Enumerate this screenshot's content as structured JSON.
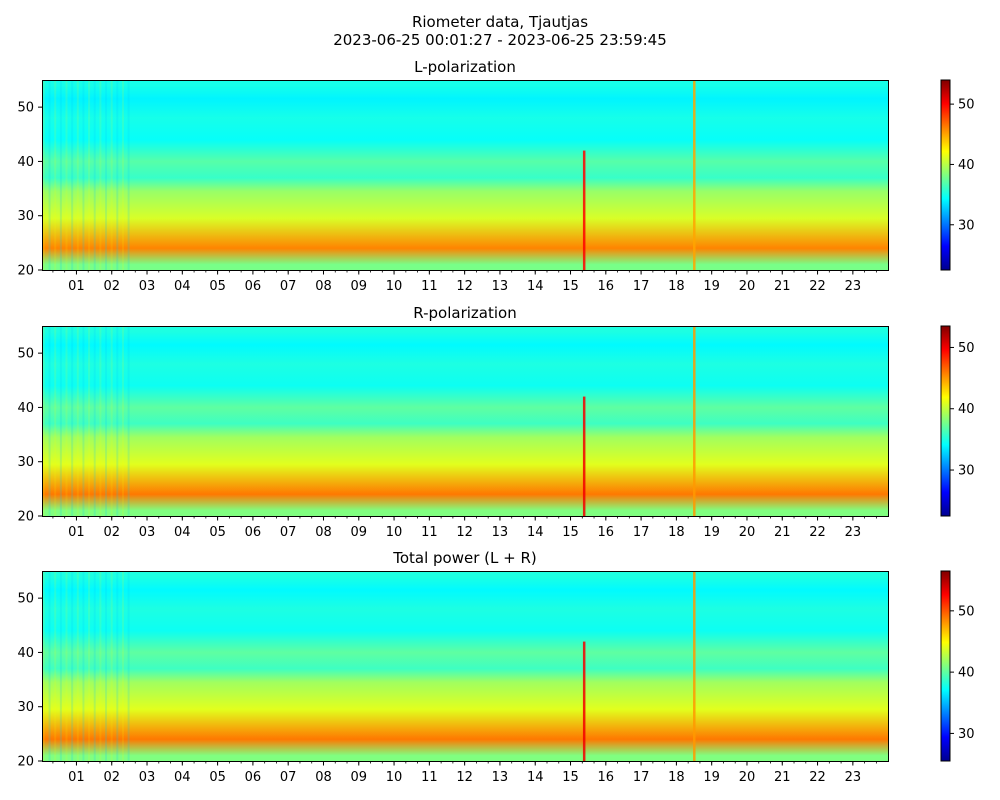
{
  "figure": {
    "title_line1": "Riometer data, Tjautjas",
    "title_line2": "2023-06-25 00:01:27 - 2023-06-25 23:59:45"
  },
  "colors": {
    "colormap": "jet",
    "stops": [
      "#00008f",
      "#0000ff",
      "#0080ff",
      "#00ffff",
      "#80ff80",
      "#ffff00",
      "#ff8000",
      "#ff0000",
      "#800000"
    ]
  },
  "chart_data": [
    {
      "type": "heatmap",
      "title": "L-polarization",
      "xlabel": "",
      "ylabel": "",
      "x_range_hours": [
        0.024,
        23.996
      ],
      "x_tick_labels": [
        "01",
        "02",
        "03",
        "04",
        "05",
        "06",
        "07",
        "08",
        "09",
        "10",
        "11",
        "12",
        "13",
        "14",
        "15",
        "16",
        "17",
        "18",
        "19",
        "20",
        "21",
        "22",
        "23"
      ],
      "y_range": [
        20,
        55
      ],
      "y_ticks": [
        20,
        30,
        40,
        50
      ],
      "colorbar": {
        "range": [
          22.5,
          54
        ],
        "ticks": [
          30,
          40,
          50
        ]
      },
      "value_profile": {
        "20-22": 38,
        "22-26": 46,
        "26-33": 41,
        "33-36": 39,
        "36-38": 36,
        "38-42": 37,
        "42-46": 34.5,
        "46-50": 35,
        "50-53": 34,
        "53-55": 35
      },
      "features": [
        {
          "hour": 15.38,
          "y_span": [
            20,
            42
          ],
          "value": 50,
          "label": "vertical spike"
        },
        {
          "hour": 18.5,
          "y_span": [
            20,
            55
          ],
          "value": 45,
          "label": "vertical line"
        }
      ]
    },
    {
      "type": "heatmap",
      "title": "R-polarization",
      "xlabel": "",
      "ylabel": "",
      "x_range_hours": [
        0.024,
        23.996
      ],
      "x_tick_labels": [
        "01",
        "02",
        "03",
        "04",
        "05",
        "06",
        "07",
        "08",
        "09",
        "10",
        "11",
        "12",
        "13",
        "14",
        "15",
        "16",
        "17",
        "18",
        "19",
        "20",
        "21",
        "22",
        "23"
      ],
      "y_range": [
        20,
        55
      ],
      "y_ticks": [
        20,
        30,
        40,
        50
      ],
      "colorbar": {
        "range": [
          22.5,
          53.5
        ],
        "ticks": [
          30,
          40,
          50
        ]
      },
      "value_profile": {
        "20-22": 38,
        "22-26": 46,
        "26-33": 41,
        "33-36": 39,
        "36-38": 36,
        "38-42": 37,
        "42-46": 34.5,
        "46-50": 35,
        "50-53": 34,
        "53-55": 35
      },
      "features": [
        {
          "hour": 15.38,
          "y_span": [
            20,
            42
          ],
          "value": 50,
          "label": "vertical spike"
        },
        {
          "hour": 18.5,
          "y_span": [
            20,
            55
          ],
          "value": 45,
          "label": "vertical line"
        }
      ]
    },
    {
      "type": "heatmap",
      "title": "Total power (L + R)",
      "xlabel": "",
      "ylabel": "",
      "x_range_hours": [
        0.024,
        23.996
      ],
      "x_tick_labels": [
        "01",
        "02",
        "03",
        "04",
        "05",
        "06",
        "07",
        "08",
        "09",
        "10",
        "11",
        "12",
        "13",
        "14",
        "15",
        "16",
        "17",
        "18",
        "19",
        "20",
        "21",
        "22",
        "23"
      ],
      "y_range": [
        20,
        55
      ],
      "y_ticks": [
        20,
        30,
        40,
        50
      ],
      "colorbar": {
        "range": [
          25.5,
          56.5
        ],
        "ticks": [
          30,
          40,
          50
        ]
      },
      "value_profile": {
        "20-22": 41,
        "22-26": 49,
        "26-33": 44,
        "33-36": 42,
        "36-38": 39,
        "38-42": 40,
        "42-46": 37.5,
        "46-50": 38,
        "50-53": 37,
        "53-55": 38
      },
      "features": [
        {
          "hour": 15.38,
          "y_span": [
            20,
            42
          ],
          "value": 53,
          "label": "vertical spike"
        },
        {
          "hour": 18.5,
          "y_span": [
            20,
            55
          ],
          "value": 48,
          "label": "vertical line"
        }
      ]
    }
  ]
}
